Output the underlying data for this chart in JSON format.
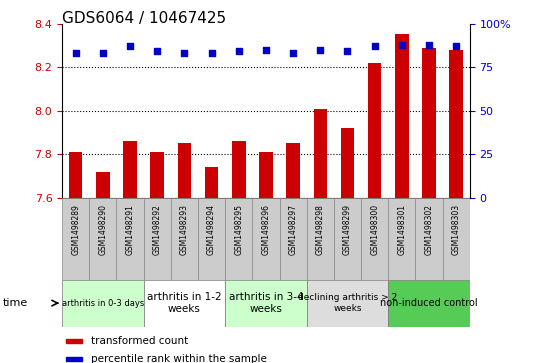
{
  "title": "GDS6064 / 10467425",
  "samples": [
    "GSM1498289",
    "GSM1498290",
    "GSM1498291",
    "GSM1498292",
    "GSM1498293",
    "GSM1498294",
    "GSM1498295",
    "GSM1498296",
    "GSM1498297",
    "GSM1498298",
    "GSM1498299",
    "GSM1498300",
    "GSM1498301",
    "GSM1498302",
    "GSM1498303"
  ],
  "bar_values": [
    7.81,
    7.72,
    7.86,
    7.81,
    7.85,
    7.74,
    7.86,
    7.81,
    7.85,
    8.01,
    7.92,
    8.22,
    8.35,
    8.29,
    8.28
  ],
  "dot_values": [
    83,
    83,
    87,
    84,
    83,
    83,
    84,
    85,
    83,
    85,
    84,
    87,
    88,
    88,
    87
  ],
  "bar_color": "#cc0000",
  "dot_color": "#0000cc",
  "ylim_left": [
    7.6,
    8.4
  ],
  "ylim_right": [
    0,
    100
  ],
  "yticks_left": [
    7.6,
    7.8,
    8.0,
    8.2,
    8.4
  ],
  "yticks_right": [
    0,
    25,
    50,
    75,
    100
  ],
  "ytick_labels_right": [
    "0",
    "25",
    "50",
    "75",
    "100%"
  ],
  "groups": [
    {
      "label": "arthritis in 0-3 days",
      "start": 0,
      "end": 3,
      "color": "#ccffcc",
      "fontsize": 6.0
    },
    {
      "label": "arthritis in 1-2\nweeks",
      "start": 3,
      "end": 6,
      "color": "#ffffff",
      "fontsize": 7.5
    },
    {
      "label": "arthritis in 3-4\nweeks",
      "start": 6,
      "end": 9,
      "color": "#ccffcc",
      "fontsize": 7.5
    },
    {
      "label": "declining arthritis > 2\nweeks",
      "start": 9,
      "end": 12,
      "color": "#dddddd",
      "fontsize": 6.5
    },
    {
      "label": "non-induced control",
      "start": 12,
      "end": 15,
      "color": "#55cc55",
      "fontsize": 7.0
    }
  ],
  "xlabel": "time",
  "legend_bar_label": "transformed count",
  "legend_dot_label": "percentile rank within the sample",
  "bar_width": 0.5,
  "grid_color": "#000000",
  "grid_linestyle": ":",
  "grid_linewidth": 0.8,
  "tick_color_left": "#cc0000",
  "tick_color_right": "#0000cc",
  "title_fontsize": 11,
  "tick_fontsize": 8,
  "label_fontsize": 8,
  "sample_box_color": "#cccccc",
  "sample_box_edge": "#888888",
  "sample_fontsize": 5.5
}
